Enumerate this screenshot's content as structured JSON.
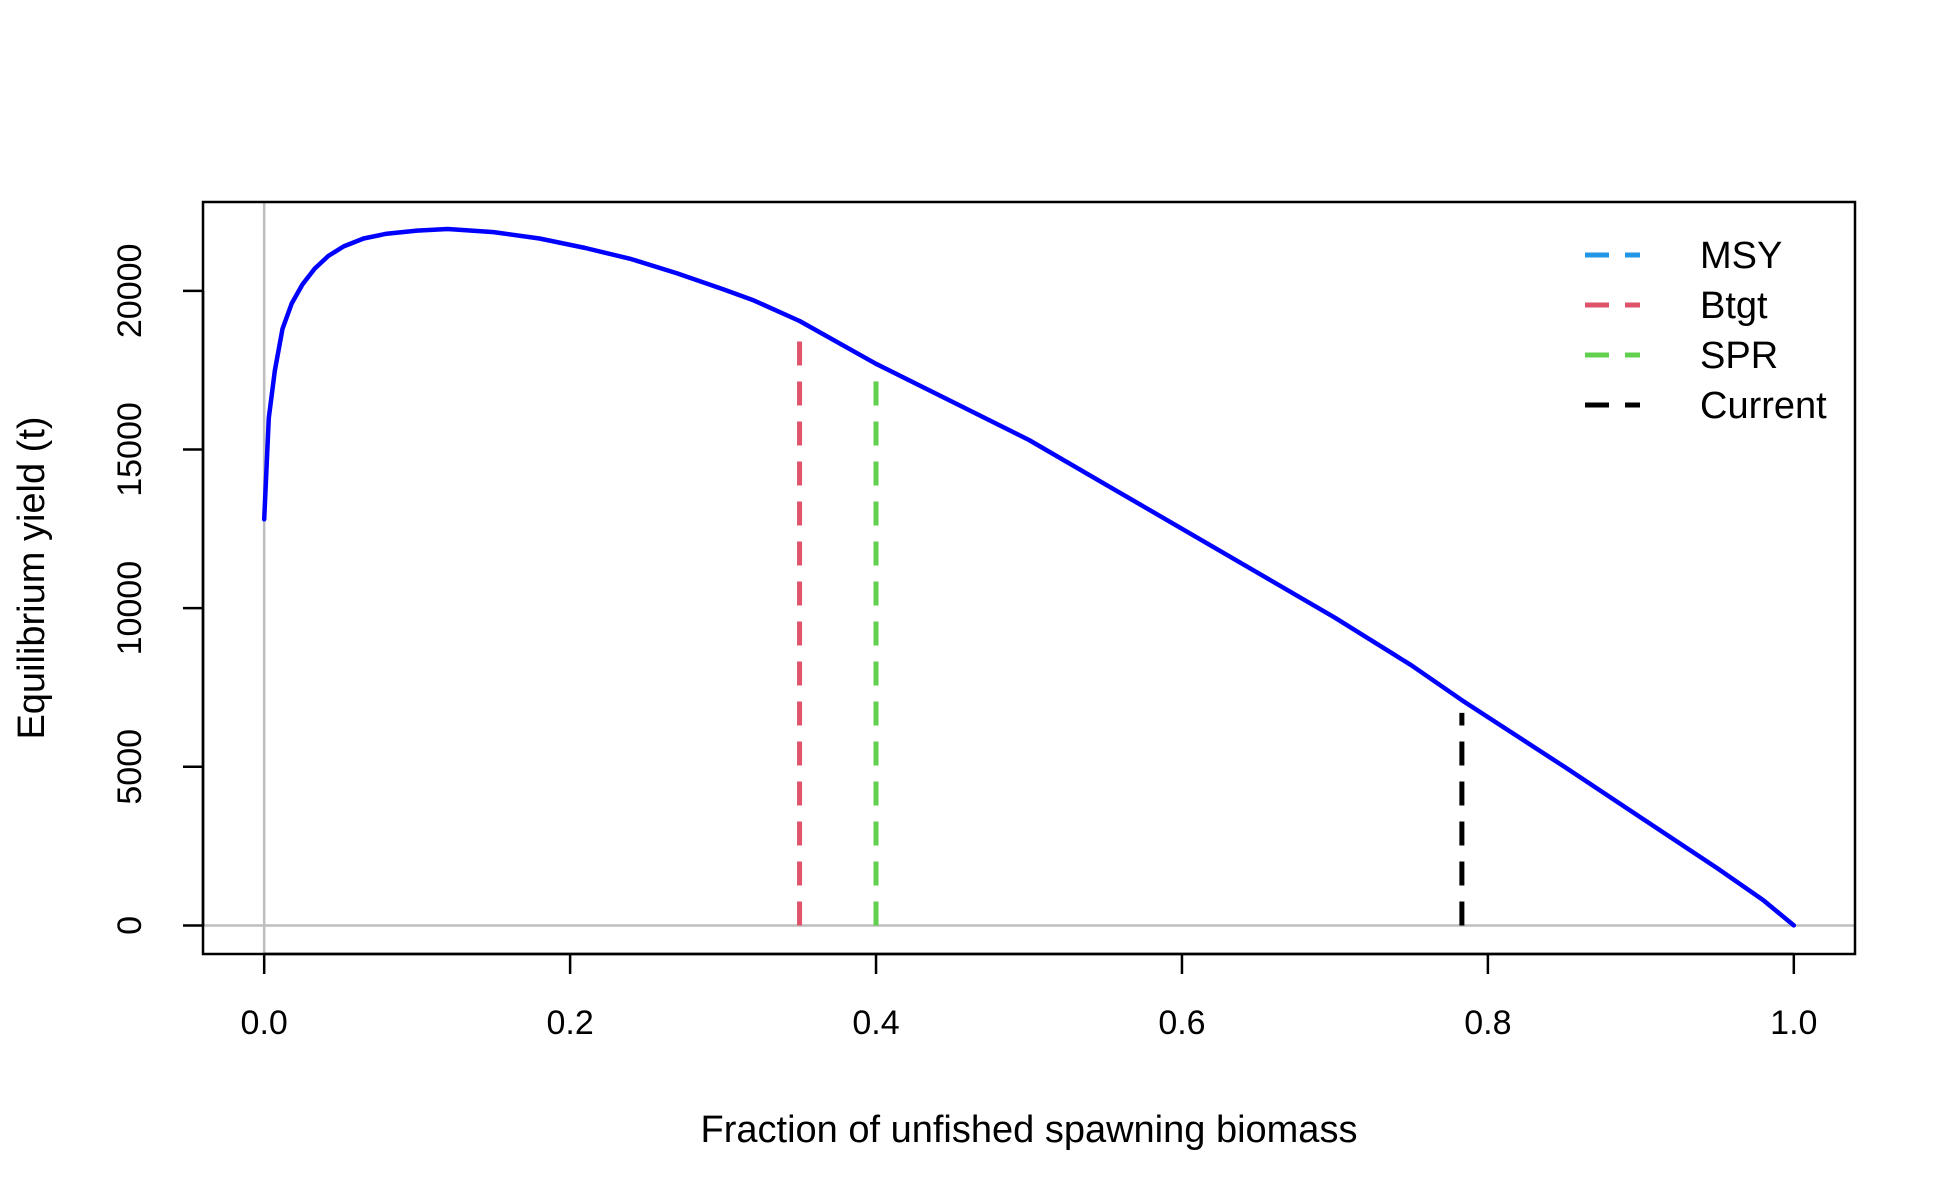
{
  "chart_data": {
    "type": "line",
    "title": "",
    "xlabel": "Fraction of unfished spawning biomass",
    "ylabel": "Equilibrium yield (t)",
    "xlim": [
      -0.04,
      1.04
    ],
    "ylim": [
      -900,
      22800
    ],
    "grid": false,
    "reference_lines": {
      "h": 0,
      "v": 0,
      "color": "#bebebe"
    },
    "x_ticks": [
      0.0,
      0.2,
      0.4,
      0.6,
      0.8,
      1.0
    ],
    "x_tick_labels": [
      "0.0",
      "0.2",
      "0.4",
      "0.6",
      "0.8",
      "1.0"
    ],
    "y_ticks": [
      0,
      5000,
      10000,
      15000,
      20000
    ],
    "y_tick_labels": [
      "0",
      "5000",
      "10000",
      "15000",
      "20000"
    ],
    "series": [
      {
        "color": "#0000ff",
        "x": [
          0.0,
          0.003,
          0.007,
          0.012,
          0.018,
          0.025,
          0.033,
          0.042,
          0.052,
          0.065,
          0.08,
          0.1,
          0.12,
          0.15,
          0.18,
          0.21,
          0.24,
          0.27,
          0.3,
          0.32,
          0.35,
          0.4,
          0.45,
          0.5,
          0.55,
          0.6,
          0.65,
          0.7,
          0.75,
          0.783,
          0.85,
          0.9,
          0.95,
          0.98,
          1.0
        ],
        "y": [
          12800,
          16000,
          17500,
          18800,
          19600,
          20200,
          20700,
          21100,
          21400,
          21650,
          21800,
          21900,
          21950,
          21850,
          21650,
          21350,
          21000,
          20550,
          20050,
          19700,
          19050,
          17700,
          16500,
          15300,
          13900,
          12500,
          11100,
          9700,
          8200,
          7100,
          5000,
          3400,
          1800,
          800,
          0
        ]
      }
    ],
    "vlines": [
      {
        "name": "MSY",
        "x": 0.12,
        "y_top": 21950,
        "color": "#2297e6",
        "visible": false
      },
      {
        "name": "Btgt",
        "x": 0.35,
        "y_top": 18500,
        "color": "#df536b",
        "visible": true
      },
      {
        "name": "SPR",
        "x": 0.4,
        "y_top": 17400,
        "color": "#61d04f",
        "visible": true
      },
      {
        "name": "Current",
        "x": 0.783,
        "y_top": 6700,
        "color": "#000000",
        "visible": true
      }
    ],
    "legend": {
      "position": "top-right",
      "entries": [
        {
          "label": "MSY",
          "color": "#2297e6"
        },
        {
          "label": "Btgt",
          "color": "#df536b"
        },
        {
          "label": "SPR",
          "color": "#61d04f"
        },
        {
          "label": "Current",
          "color": "#000000"
        }
      ]
    }
  }
}
